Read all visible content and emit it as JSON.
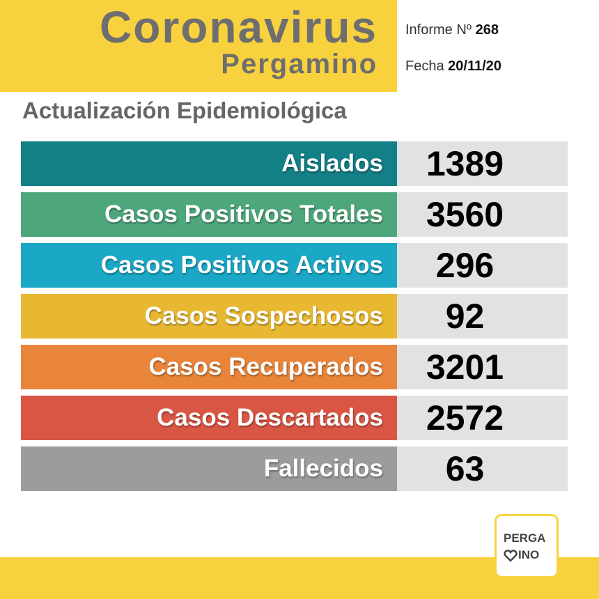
{
  "header": {
    "title": "Coronavirus",
    "city": "Pergamino",
    "report_label": "Informe Nº",
    "report_number": "268",
    "date_label": "Fecha",
    "date": "20/11/20"
  },
  "subtitle": "Actualización Epidemiológica",
  "table": {
    "rows": [
      {
        "label": "Aislados",
        "value": 1389,
        "color": "#137f87"
      },
      {
        "label": "Casos Positivos Totales",
        "value": 3560,
        "color": "#4da77b"
      },
      {
        "label": "Casos Positivos Activos",
        "value": 296,
        "color": "#1ba8c6"
      },
      {
        "label": "Casos Sospechosos",
        "value": 92,
        "color": "#e8b832"
      },
      {
        "label": "Casos Recuperados",
        "value": 3201,
        "color": "#e8853b"
      },
      {
        "label": "Casos Descartados",
        "value": 2572,
        "color": "#d95645"
      },
      {
        "label": "Fallecidos",
        "value": 63,
        "color": "#9c9c9c"
      }
    ]
  },
  "logo": {
    "line1": "PERGA",
    "line2": "INO"
  }
}
